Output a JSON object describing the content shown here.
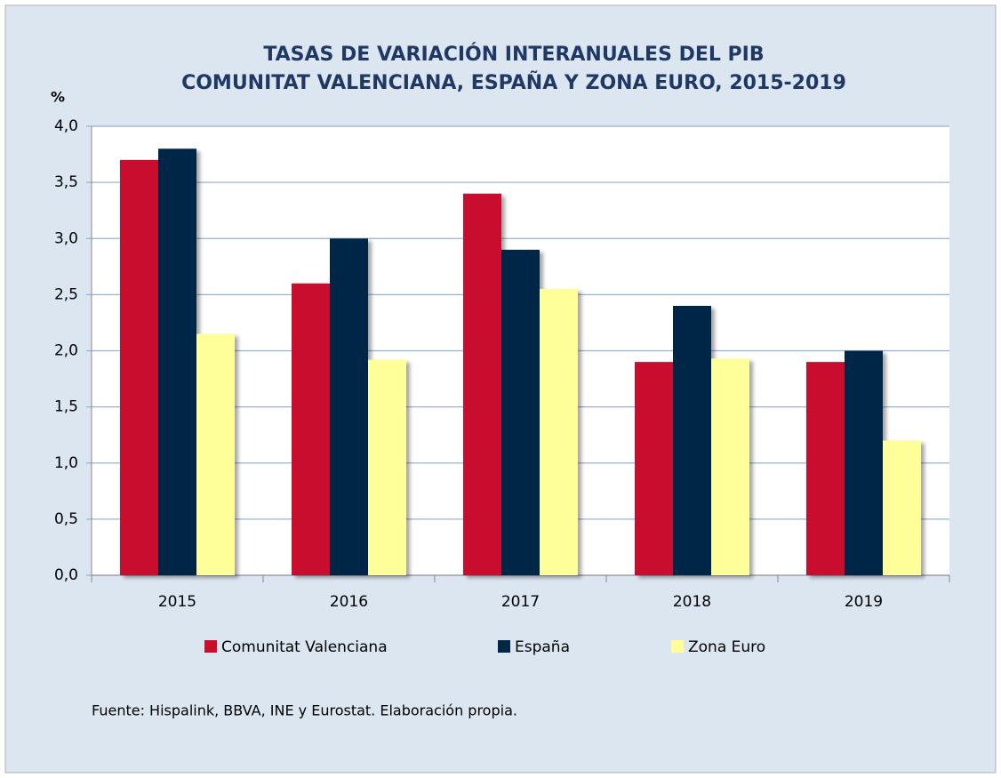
{
  "chart_data": {
    "type": "bar",
    "title": "TASAS DE VARIACIÓN INTERANUALES DEL PIB",
    "subtitle": "COMUNITAT VALENCIANA, ESPAÑA Y ZONA EURO, 2015-2019",
    "y_label": "%",
    "categories": [
      "2015",
      "2016",
      "2017",
      "2018",
      "2019"
    ],
    "series": [
      {
        "name": "Comunitat Valenciana",
        "color": "#c8102e",
        "values": [
          3.7,
          2.6,
          3.4,
          1.9,
          1.9
        ]
      },
      {
        "name": "España",
        "color": "#002846",
        "values": [
          3.8,
          3.0,
          2.9,
          2.4,
          2.0
        ]
      },
      {
        "name": "Zona Euro",
        "color": "#ffff99",
        "values": [
          2.15,
          1.92,
          2.55,
          1.93,
          1.2
        ]
      }
    ],
    "ylim": [
      0,
      4
    ],
    "yticks": [
      {
        "value": 0,
        "label": "0,0"
      },
      {
        "value": 0.5,
        "label": "0,5"
      },
      {
        "value": 1,
        "label": "1,0"
      },
      {
        "value": 1.5,
        "label": "1,5"
      },
      {
        "value": 2,
        "label": "2,0"
      },
      {
        "value": 2.5,
        "label": "2,5"
      },
      {
        "value": 3,
        "label": "3,0"
      },
      {
        "value": 3.5,
        "label": "3,5"
      },
      {
        "value": 4,
        "label": "4,0"
      }
    ],
    "grid": true,
    "legend": "bottom",
    "source": "Fuente: Hispalink, BBVA, INE y Eurostat. Elaboración propia."
  }
}
